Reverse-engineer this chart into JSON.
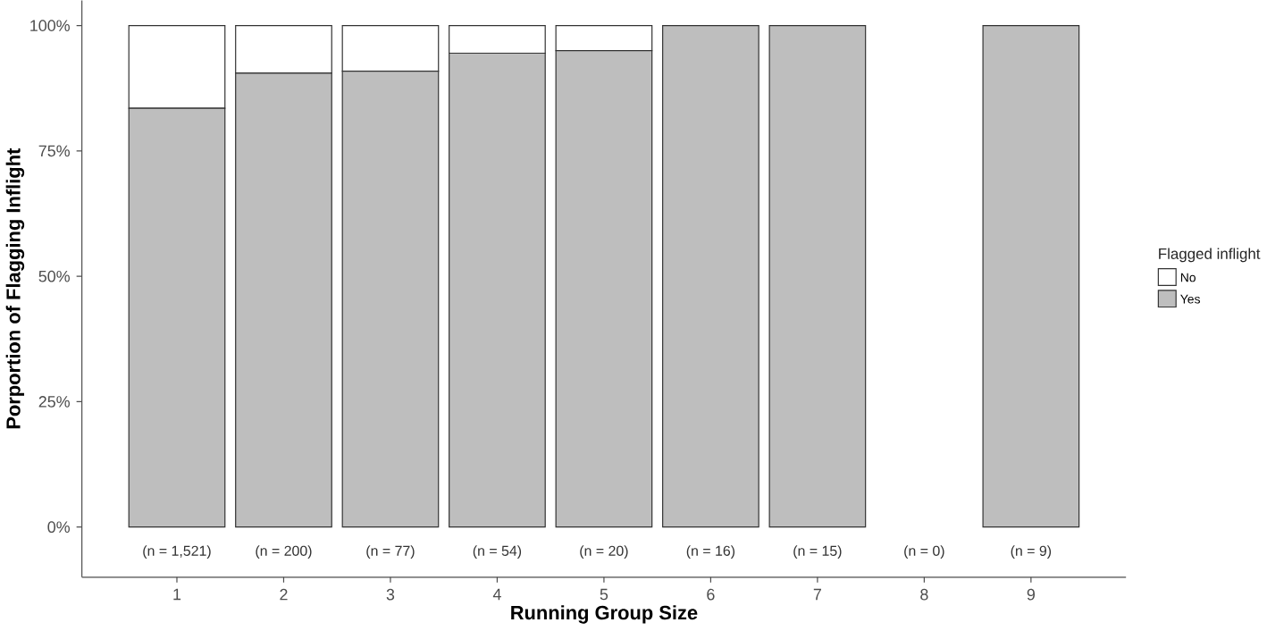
{
  "chart_data": {
    "type": "bar",
    "stacked": true,
    "xlabel": "Running Group Size",
    "ylabel": "Porportion of Flagging Inflight",
    "legend_title": "Flagged inflight",
    "legend": "right",
    "categories": [
      "1",
      "2",
      "3",
      "4",
      "5",
      "6",
      "7",
      "8",
      "9"
    ],
    "series": [
      {
        "name": "Yes",
        "color": "#bebebe",
        "values": [
          0.835,
          0.905,
          0.909,
          0.945,
          0.95,
          1,
          1,
          null,
          1
        ]
      },
      {
        "name": "No",
        "color": "#ffffff",
        "values": [
          0.165,
          0.095,
          0.091,
          0.055,
          0.05,
          0,
          0,
          null,
          0
        ]
      }
    ],
    "ylim": [
      -0.1,
      1.05
    ],
    "yticks": [
      {
        "value": 0,
        "label": "0%"
      },
      {
        "value": 0.25,
        "label": "25%"
      },
      {
        "value": 0.5,
        "label": "50%"
      },
      {
        "value": 0.75,
        "label": "75%"
      },
      {
        "value": 1,
        "label": "100%"
      }
    ],
    "annotations": [
      "(n = 1,521)",
      "(n = 200)",
      "(n = 77)",
      "(n = 54)",
      "(n = 20)",
      "(n = 16)",
      "(n = 15)",
      "(n = 0)",
      "(n = 9)"
    ]
  }
}
